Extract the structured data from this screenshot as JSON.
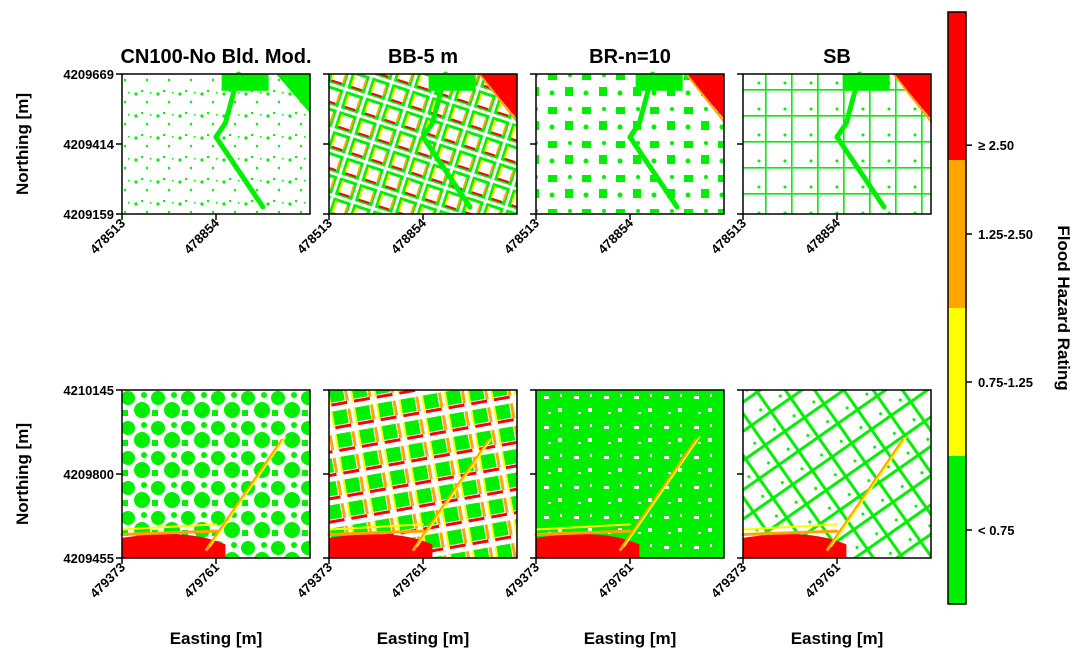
{
  "chart_data": {
    "type": "heatmap",
    "panels": [
      {
        "row": 0,
        "col": 0,
        "title": "CN100-No Bld. Mod.",
        "pattern": "sparse"
      },
      {
        "row": 0,
        "col": 1,
        "title": "BB-5 m",
        "pattern": "curved-buildings"
      },
      {
        "row": 0,
        "col": 2,
        "title": "BR-n=10",
        "pattern": "blocks"
      },
      {
        "row": 0,
        "col": 3,
        "title": "SB",
        "pattern": "sparse-grid"
      },
      {
        "row": 1,
        "col": 0,
        "title": "",
        "pattern": "dense"
      },
      {
        "row": 1,
        "col": 1,
        "title": "",
        "pattern": "grid-buildings"
      },
      {
        "row": 1,
        "col": 2,
        "title": "",
        "pattern": "very-dense"
      },
      {
        "row": 1,
        "col": 3,
        "title": "",
        "pattern": "street-grid"
      }
    ],
    "rows": [
      {
        "ylabel": "Northing [m]",
        "yticks": [
          "4209669",
          "4209414",
          "4209159"
        ],
        "xticks": [
          "478513",
          "478854"
        ],
        "xlabel": ""
      },
      {
        "ylabel": "Northing [m]",
        "yticks": [
          "4210145",
          "4209800",
          "4209455"
        ],
        "xticks": [
          "479373",
          "479761"
        ],
        "xlabel": "Easting [m]"
      }
    ],
    "colorbar": {
      "label": "Flood Hazard Rating",
      "classes": [
        {
          "label": "< 0.75",
          "color": "#00ee00"
        },
        {
          "label": "0.75-1.25",
          "color": "#ffff00"
        },
        {
          "label": "1.25-2.50",
          "color": "#ffa500"
        },
        {
          "label": "≥ 2.50",
          "color": "#ff0000"
        }
      ]
    }
  }
}
